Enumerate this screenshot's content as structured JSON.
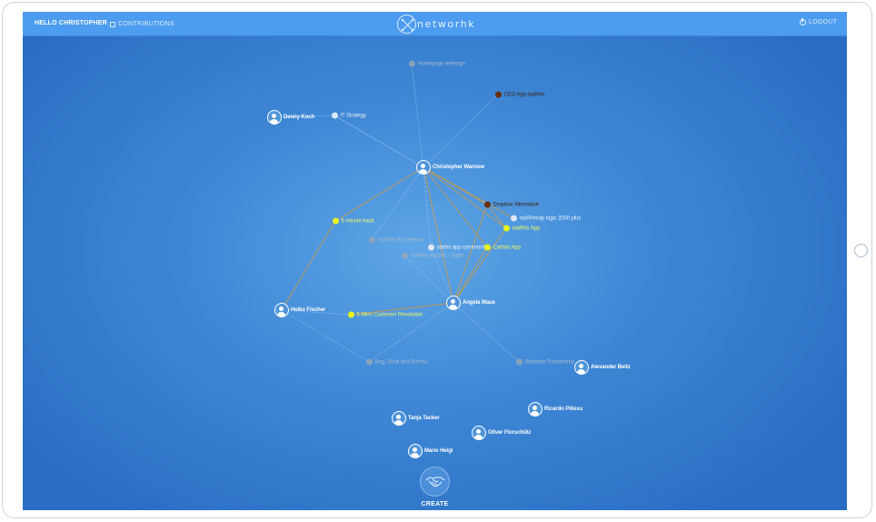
{
  "header": {
    "greeting": "HELLO CHRISTOPHER",
    "contributions_label": "CONTRIBUTIONS",
    "logo_text": "networhk",
    "logout_label": "LOGOUT"
  },
  "colors": {
    "accent": "#4c9cf0",
    "edge_orange": "#d49a3c",
    "edge_faint": "#8fc0ef",
    "node_yellow": "#e8f31c",
    "node_brown": "#6a2c0a"
  },
  "nodes": {
    "homepage_redesign": "Homepage redesign",
    "ceo_app": "CEO App staRHs",
    "it_strategy": "IT Strategy",
    "dropbox_alternative": "Dropbox Alternative",
    "starhmap_logic": "staRHmap logic 2000 plus",
    "starhs_app": "staRHs App",
    "five_minute_hack": "5 minute hack",
    "starhs_pro": "staRHs Pro Version",
    "starhs_community": "starhs app community",
    "carhds_app": "Carhds App",
    "starhs_support": "staRHs support - again",
    "five_mins_resolution": "5 Mins Customer Resolution",
    "beg_steal_borrow": "Beg, Steal and Borrow",
    "redefine_partnership": "Redefine Partnership"
  },
  "people": {
    "denny": "Denny Koch",
    "christopher": "Christopher Warnow",
    "heiko": "Heiko Fischer",
    "angela": "Angela Maus",
    "alexander": "Alexander Beitz",
    "ricardo": "Ricardo Pilloxu",
    "tanja": "Tanja Tacker",
    "oliver": "Oliver Florschütz",
    "mario": "Mario Heigl"
  },
  "actions": {
    "create_label": "CREATE"
  }
}
